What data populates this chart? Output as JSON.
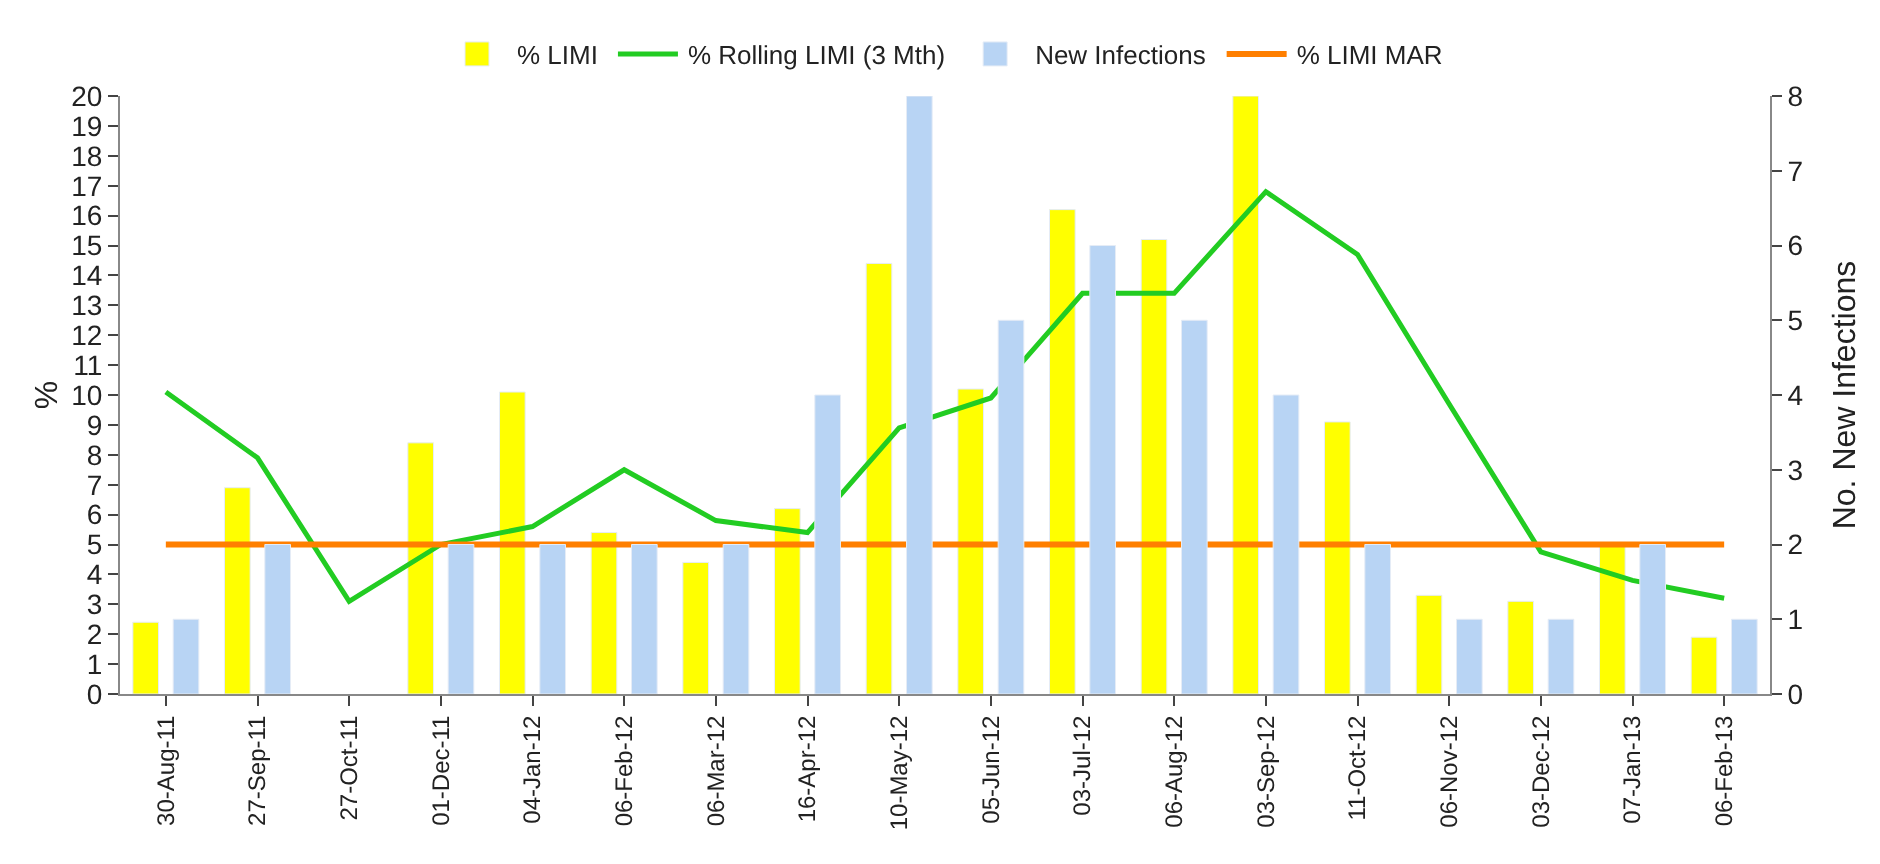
{
  "chart_data": {
    "type": "bar",
    "categories": [
      "30-Aug-11",
      "27-Sep-11",
      "27-Oct-11",
      "01-Dec-11",
      "04-Jan-12",
      "06-Feb-12",
      "06-Mar-12",
      "16-Apr-12",
      "10-May-12",
      "05-Jun-12",
      "03-Jul-12",
      "06-Aug-12",
      "03-Sep-12",
      "11-Oct-12",
      "06-Nov-12",
      "03-Dec-12",
      "07-Jan-13",
      "06-Feb-13"
    ],
    "series": [
      {
        "name": "% LIMI",
        "color": "#ffff00",
        "values": [
          2.4,
          6.9,
          null,
          8.4,
          10.1,
          5.4,
          4.4,
          6.2,
          14.4,
          10.2,
          16.2,
          15.2,
          20,
          9.1,
          3.3,
          3.1,
          5.0,
          1.9
        ]
      },
      {
        "name": "% Rolling LIMI (3 Mth)",
        "type": "line",
        "color": "#22cc22",
        "values": [
          10.1,
          7.9,
          3.1,
          5.0,
          5.6,
          7.5,
          5.8,
          5.4,
          8.9,
          9.9,
          13.4,
          13.4,
          16.8,
          14.7,
          9.7,
          4.75,
          3.8,
          3.2
        ]
      },
      {
        "name": "New Infections",
        "axis": "y2",
        "color": "#b8d4f4",
        "values": [
          1,
          2,
          null,
          2,
          2,
          2,
          2,
          4,
          8,
          5,
          6,
          5,
          4,
          2,
          1,
          1,
          2,
          1
        ]
      }
    ],
    "ref_lines": [
      {
        "axis": "y",
        "value": 5,
        "label": "% LIMI MAR",
        "color": "#ff7f00"
      }
    ],
    "ylabel": "%",
    "y2label": "No. New Infections",
    "ylim": [
      0,
      20
    ],
    "yticks": [
      0,
      1,
      2,
      3,
      4,
      5,
      6,
      7,
      8,
      9,
      10,
      11,
      12,
      13,
      14,
      15,
      16,
      17,
      18,
      19,
      20
    ],
    "y2lim": [
      0,
      8
    ],
    "y2ticks": [
      0,
      1,
      2,
      3,
      4,
      5,
      6,
      7,
      8
    ],
    "legend": "top",
    "line_style": "solid",
    "marker": "none"
  }
}
